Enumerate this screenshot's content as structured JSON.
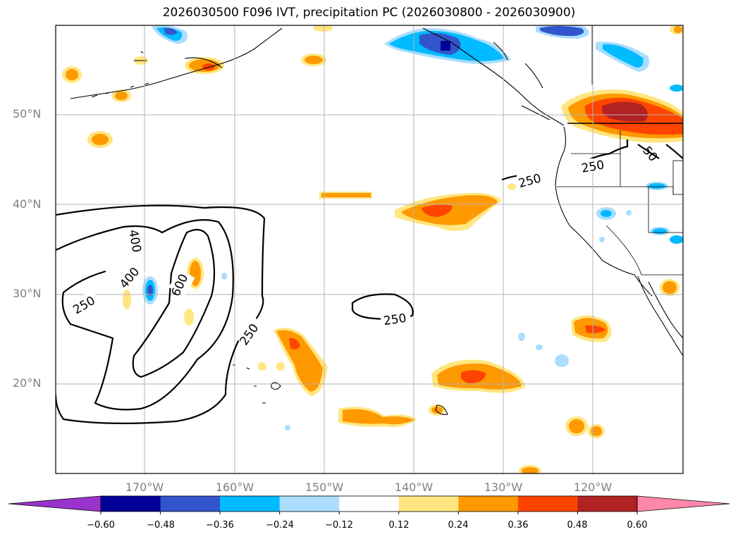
{
  "title": "2026030500 F096 IVT, precipitation PC (2026030800 - 2026030900)",
  "lat_labels": [
    "50°N",
    "40°N",
    "30°N",
    "20°N"
  ],
  "lon_labels": [
    "170°W",
    "160°W",
    "150°W",
    "140°W",
    "130°W",
    "120°W"
  ],
  "colorbar": {
    "ticks": [
      "−0.60",
      "−0.48",
      "−0.36",
      "−0.24",
      "−0.12",
      "0.12",
      "0.24",
      "0.36",
      "0.48",
      "0.60"
    ],
    "colors": [
      "#9933cc",
      "#000099",
      "#3355cc",
      "#00bbff",
      "#aaddff",
      "#ffffff",
      "#ffe680",
      "#ff9900",
      "#ff4400",
      "#b22222",
      "#ff88aa",
      "#ff88aa"
    ]
  },
  "ivt_contour_labels": [
    "400",
    "400",
    "600",
    "250",
    "250",
    "250",
    "250",
    "250",
    "50"
  ]
}
